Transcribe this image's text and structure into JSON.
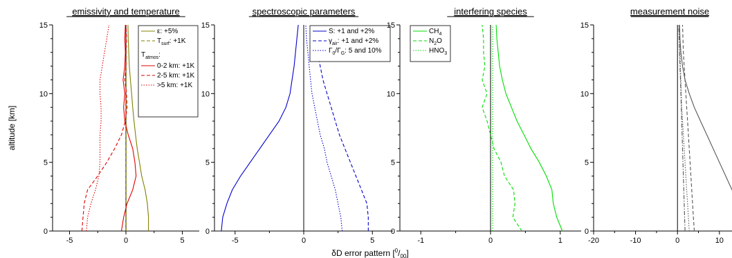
{
  "common": {
    "ylabel": "altitude [km]",
    "xlabel_prefix": "δD error pattern [",
    "xlabel_sup": "0",
    "xlabel_slash": "/",
    "xlabel_sub": "00",
    "xlabel_suffix": "]"
  },
  "chart_data": [
    {
      "type": "line",
      "title": "emissivity and temperature",
      "xlim": [
        -6.5,
        6.5
      ],
      "ylim": [
        0,
        15
      ],
      "xticks": [
        -5,
        0,
        5
      ],
      "xtick_labels": [
        "-5",
        "0",
        "5"
      ],
      "yticks": [
        0,
        5,
        10,
        15
      ],
      "ytick_labels": [
        "0",
        "5",
        "10",
        "15"
      ],
      "zero_line": true,
      "legend": {
        "position": "top-right",
        "group_header": "T_atmos:",
        "group_header_main": "T",
        "group_header_sub": "atmos",
        "group_header_suffix": ":"
      },
      "series": [
        {
          "name": "ε: +5%",
          "legend_main": "ε: +5%",
          "legend_sub": "",
          "legend_suffix": "",
          "color": "#808000",
          "dash": "solid",
          "x": [
            2.0,
            2.0,
            1.9,
            1.7,
            1.4,
            1.2,
            1.0,
            0.85,
            0.72,
            0.6,
            0.5,
            0.4,
            0.3,
            0.25,
            0.2,
            0.18
          ],
          "y": [
            0,
            1,
            2,
            3,
            4,
            5,
            6,
            7,
            8,
            9,
            10,
            11,
            12,
            13,
            14,
            15
          ]
        },
        {
          "name": "T_surf: +1K",
          "legend_main": "T",
          "legend_sub": "surf",
          "legend_suffix": ": +1K",
          "color": "#808000",
          "dash": "dashed",
          "x": [
            0.02,
            0.02,
            0.02,
            0.02,
            0.02,
            0.02,
            0.02,
            0.02,
            0.02,
            0.02,
            0.02,
            0.02,
            0.02,
            0.02,
            0.02,
            0.02
          ],
          "y": [
            0,
            1,
            2,
            3,
            4,
            5,
            6,
            7,
            8,
            9,
            10,
            11,
            12,
            13,
            14,
            15
          ]
        },
        {
          "name": "0-2 km: +1K",
          "legend_main": "0-2 km: +1K",
          "legend_sub": "",
          "legend_suffix": "",
          "color": "#e00000",
          "dash": "solid",
          "x": [
            -0.4,
            -0.2,
            0.1,
            0.6,
            0.9,
            0.8,
            0.6,
            0.2,
            -0.1,
            -0.2,
            -0.1,
            -0.25,
            -0.1,
            -0.05,
            -0.1,
            -0.05
          ],
          "y": [
            0,
            1,
            2,
            3,
            4,
            5,
            6,
            7,
            8,
            9,
            10,
            11,
            12,
            13,
            14,
            15
          ]
        },
        {
          "name": "2-5 km: +1K",
          "legend_main": "2-5 km: +1K",
          "legend_sub": "",
          "legend_suffix": "",
          "color": "#e00000",
          "dash": "dashed",
          "x": [
            -3.9,
            -3.8,
            -3.7,
            -3.4,
            -2.5,
            -1.7,
            -1.0,
            -0.4,
            -0.05,
            0.1,
            0.05,
            -0.1,
            0.0,
            0.0,
            0.05,
            0.0
          ],
          "y": [
            0,
            1,
            2,
            3,
            4,
            5,
            6,
            7,
            8,
            9,
            10,
            11,
            12,
            13,
            14,
            15
          ]
        },
        {
          "name": ">5 km: +1K",
          "legend_main": ">5 km: +1K",
          "legend_sub": "",
          "legend_suffix": "",
          "color": "#e00000",
          "dash": "dotted",
          "x": [
            -3.5,
            -3.4,
            -3.1,
            -2.7,
            -2.4,
            -2.3,
            -2.3,
            -2.3,
            -2.2,
            -2.2,
            -2.3,
            -2.3,
            -2.1,
            -1.9,
            -1.7,
            -1.5
          ],
          "y": [
            0,
            1,
            2,
            3,
            4,
            5,
            6,
            7,
            8,
            9,
            10,
            11,
            12,
            13,
            14,
            15
          ]
        }
      ]
    },
    {
      "type": "line",
      "title": "spectroscopic parameters",
      "xlim": [
        -6.5,
        6.5
      ],
      "ylim": [
        0,
        15
      ],
      "xticks": [
        -5,
        0,
        5
      ],
      "xtick_labels": [
        "-5",
        "0",
        "5"
      ],
      "yticks": [
        0,
        5,
        10,
        15
      ],
      "ytick_labels": [
        "0",
        "5",
        "10",
        "15"
      ],
      "zero_line": true,
      "legend": {
        "position": "top-right"
      },
      "series": [
        {
          "name": "S: +1 and +2%",
          "legend_main": "S: +1 and +2%",
          "legend_sub": "",
          "legend_suffix": "",
          "color": "#0000cc",
          "dash": "solid",
          "x": [
            -6.0,
            -5.9,
            -5.6,
            -5.2,
            -4.6,
            -3.9,
            -3.2,
            -2.5,
            -1.8,
            -1.3,
            -1.0,
            -0.85,
            -0.7,
            -0.6,
            -0.5,
            -0.4
          ],
          "y": [
            0,
            1,
            2,
            3,
            4,
            5,
            6,
            7,
            8,
            9,
            10,
            11,
            12,
            13,
            14,
            15
          ]
        },
        {
          "name": "γ_air: +1 and +2%",
          "legend_main": "γ",
          "legend_sub": "air",
          "legend_suffix": ": +1 and +2%",
          "color": "#0000cc",
          "dash": "dashed",
          "x": [
            4.7,
            4.7,
            4.6,
            4.2,
            3.8,
            3.4,
            3.0,
            2.6,
            2.3,
            2.0,
            1.7,
            1.4,
            1.2,
            1.0,
            0.8,
            0.6
          ],
          "y": [
            0,
            1,
            2,
            3,
            4,
            5,
            6,
            7,
            8,
            9,
            10,
            11,
            12,
            13,
            14,
            15
          ]
        },
        {
          "name": "Γ_0/Γ_G: 5 and 10%",
          "legend_main": "Γ",
          "legend_sub": "0",
          "legend_suffix": "/Γ",
          "legend_sub2": "G",
          "legend_suffix2": ": 5 and 10%",
          "color": "#0000cc",
          "dash": "dotted",
          "x": [
            2.8,
            2.7,
            2.5,
            2.3,
            2.0,
            1.7,
            1.5,
            1.2,
            1.0,
            0.8,
            0.6,
            0.5,
            0.4,
            0.3,
            0.2,
            0.15
          ],
          "y": [
            0,
            1,
            2,
            3,
            4,
            5,
            6,
            7,
            8,
            9,
            10,
            11,
            12,
            13,
            14,
            15
          ]
        }
      ]
    },
    {
      "type": "line",
      "title": "interfering species",
      "xlim": [
        -1.3,
        1.3
      ],
      "ylim": [
        0,
        15
      ],
      "xticks": [
        -1,
        0,
        1
      ],
      "xtick_labels": [
        "-1",
        "0",
        "1"
      ],
      "yticks": [
        0,
        5,
        10,
        15
      ],
      "ytick_labels": [
        "0",
        "5",
        "10",
        "15"
      ],
      "zero_line": true,
      "legend": {
        "position": "top-left"
      },
      "series": [
        {
          "name": "CH4",
          "legend_main": "CH",
          "legend_sub": "4",
          "legend_suffix": "",
          "color": "#00dd00",
          "dash": "solid",
          "x": [
            1.03,
            0.95,
            0.9,
            0.88,
            0.8,
            0.7,
            0.58,
            0.48,
            0.38,
            0.3,
            0.22,
            0.17,
            0.13,
            0.11,
            0.09,
            0.08
          ],
          "y": [
            0,
            1,
            2,
            3,
            4,
            5,
            6,
            7,
            8,
            9,
            10,
            11,
            12,
            13,
            14,
            15
          ]
        },
        {
          "name": "N2O",
          "legend_main": "N",
          "legend_sub": "2",
          "legend_suffix": "O",
          "color": "#00dd00",
          "dash": "dashed",
          "x": [
            0.45,
            0.32,
            0.35,
            0.33,
            0.2,
            0.15,
            0.05,
            0.0,
            -0.05,
            -0.12,
            -0.05,
            -0.12,
            -0.08,
            -0.1,
            -0.1,
            -0.12
          ],
          "y": [
            0,
            1,
            2,
            3,
            4,
            5,
            6,
            7,
            8,
            9,
            10,
            11,
            12,
            13,
            14,
            15
          ]
        },
        {
          "name": "HNO3",
          "legend_main": "HNO",
          "legend_sub": "3",
          "legend_suffix": "",
          "color": "#00dd00",
          "dash": "dotted",
          "x": [
            0.03,
            0.03,
            0.03,
            0.03,
            0.03,
            0.03,
            0.03,
            0.03,
            0.03,
            0.03,
            0.03,
            0.03,
            0.03,
            0.03,
            0.03,
            0.03
          ],
          "y": [
            0,
            1,
            2,
            3,
            4,
            5,
            6,
            7,
            8,
            9,
            10,
            11,
            12,
            13,
            14,
            15
          ]
        }
      ]
    },
    {
      "type": "line",
      "title": "measurement noise",
      "xlim": [
        -20,
        13
      ],
      "ylim": [
        0,
        15
      ],
      "xticks": [
        -20,
        -10,
        0,
        10
      ],
      "xtick_labels": [
        "-20",
        "-10",
        "0",
        "10"
      ],
      "yticks": [
        0,
        5,
        10,
        15
      ],
      "ytick_labels": [
        "0",
        "5",
        "10",
        "15"
      ],
      "zero_line": true,
      "series": [
        {
          "color": "#555555",
          "dash": "solid",
          "x": [
            16.0,
            14.5,
            13.0,
            11.5,
            10.0,
            8.5,
            7.0,
            5.5,
            4.0,
            2.8,
            1.8,
            1.2,
            0.8,
            0.6,
            0.5
          ],
          "y": [
            1,
            2,
            3,
            4,
            5,
            6,
            7,
            8,
            9,
            10,
            11,
            12,
            13,
            14,
            15
          ]
        },
        {
          "color": "#555555",
          "dash": "dashed",
          "x": [
            4.0,
            3.8,
            3.6,
            3.4,
            3.2,
            3.0,
            2.8,
            2.6,
            2.4,
            2.2,
            2.0,
            1.8,
            1.6,
            1.4,
            1.3,
            1.2
          ],
          "y": [
            0,
            1,
            2,
            3,
            4,
            5,
            6,
            7,
            8,
            9,
            10,
            11,
            12,
            13,
            14,
            15
          ]
        },
        {
          "color": "#555555",
          "dash": "dashdot",
          "x": [
            1.8,
            1.7,
            1.6,
            1.5,
            1.4,
            1.3,
            1.2,
            1.1,
            1.0,
            0.9,
            0.8,
            0.7,
            0.6,
            0.5,
            0.4,
            0.3
          ],
          "y": [
            0,
            1,
            2,
            3,
            4,
            5,
            6,
            7,
            8,
            9,
            10,
            11,
            12,
            13,
            14,
            15
          ]
        },
        {
          "color": "#555555",
          "dash": "dotted",
          "x": [
            2.8,
            2.6,
            2.4,
            2.2,
            2.0,
            1.8,
            1.6,
            1.4,
            1.2,
            1.0,
            0.9,
            0.8,
            0.7,
            0.6,
            0.5,
            0.4
          ],
          "y": [
            0,
            1,
            2,
            3,
            4,
            5,
            6,
            7,
            8,
            9,
            10,
            11,
            12,
            13,
            14,
            15
          ]
        }
      ]
    }
  ]
}
